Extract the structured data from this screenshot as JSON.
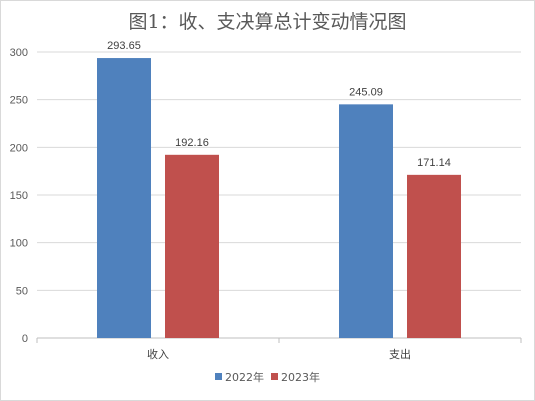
{
  "chart_data": {
    "type": "bar",
    "title": "图1：收、支决算总计变动情况图",
    "categories": [
      "收入",
      "支出"
    ],
    "series": [
      {
        "name": "2022年",
        "values": [
          293.65,
          245.09
        ],
        "color": "#4f81bd"
      },
      {
        "name": "2023年",
        "values": [
          192.16,
          171.14
        ],
        "color": "#c0504d"
      }
    ],
    "ylim": [
      0,
      300
    ],
    "yticks": [
      0,
      50,
      100,
      150,
      200,
      250,
      300
    ],
    "grid": true,
    "legend_position": "bottom"
  }
}
